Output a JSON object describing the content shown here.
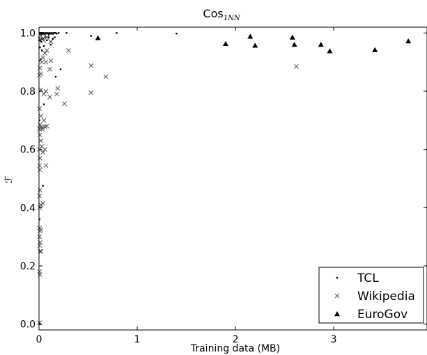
{
  "chart_data": {
    "type": "scatter",
    "title": "Cos",
    "title_subscript": "1NN",
    "xlabel": "Training data (MB)",
    "ylabel": "ℱ",
    "xlim": [
      0,
      3.95
    ],
    "ylim": [
      -0.02,
      1.02
    ],
    "x_ticks": [
      {
        "value": 0,
        "label": "0"
      },
      {
        "value": 1,
        "label": "1"
      },
      {
        "value": 2,
        "label": "2"
      },
      {
        "value": 3,
        "label": "3"
      }
    ],
    "y_ticks": [
      {
        "value": 0.0,
        "label": "0.0"
      },
      {
        "value": 0.2,
        "label": "0.2"
      },
      {
        "value": 0.4,
        "label": "0.4"
      },
      {
        "value": 0.6,
        "label": "0.6"
      },
      {
        "value": 0.8,
        "label": "0.8"
      },
      {
        "value": 1.0,
        "label": "1.0"
      }
    ],
    "grid": false,
    "legend_position": "bottom-right",
    "series": [
      {
        "name": "TCL",
        "marker": "point",
        "points": [
          [
            0.005,
            1.0
          ],
          [
            0.01,
            0.995
          ],
          [
            0.015,
            1.0
          ],
          [
            0.02,
            0.998
          ],
          [
            0.025,
            1.0
          ],
          [
            0.03,
            0.995
          ],
          [
            0.035,
            1.0
          ],
          [
            0.04,
            0.997
          ],
          [
            0.05,
            1.0
          ],
          [
            0.06,
            0.995
          ],
          [
            0.07,
            1.0
          ],
          [
            0.08,
            0.998
          ],
          [
            0.09,
            1.0
          ],
          [
            0.1,
            0.995
          ],
          [
            0.11,
            1.0
          ],
          [
            0.12,
            0.998
          ],
          [
            0.13,
            1.0
          ],
          [
            0.14,
            0.997
          ],
          [
            0.15,
            1.0
          ],
          [
            0.16,
            1.0
          ],
          [
            0.17,
            1.0
          ],
          [
            0.18,
            0.998
          ],
          [
            0.2,
            1.0
          ],
          [
            0.28,
            1.0
          ],
          [
            0.53,
            0.99
          ],
          [
            0.79,
            1.0
          ],
          [
            1.4,
            0.998
          ],
          [
            0.01,
            0.975
          ],
          [
            0.02,
            0.97
          ],
          [
            0.03,
            0.98
          ],
          [
            0.04,
            0.98
          ],
          [
            0.06,
            0.985
          ],
          [
            0.08,
            0.975
          ],
          [
            0.1,
            0.985
          ],
          [
            0.12,
            0.97
          ],
          [
            0.14,
            0.98
          ],
          [
            0.16,
            0.985
          ],
          [
            0.01,
            0.95
          ],
          [
            0.03,
            0.94
          ],
          [
            0.05,
            0.955
          ],
          [
            0.12,
            0.96
          ],
          [
            0.02,
            0.91
          ],
          [
            0.005,
            0.905
          ],
          [
            0.22,
            0.875
          ],
          [
            0.17,
            0.85
          ],
          [
            0.005,
            0.8
          ],
          [
            0.05,
            0.755
          ],
          [
            0.005,
            0.7
          ],
          [
            0.04,
            0.475
          ],
          [
            0.005,
            0.36
          ],
          [
            0.005,
            0.33
          ],
          [
            0.005,
            0.005
          ],
          [
            0.01,
            0.0
          ]
        ]
      },
      {
        "name": "Wikipedia",
        "marker": "x",
        "points": [
          [
            0.01,
            0.98
          ],
          [
            0.02,
            0.99
          ],
          [
            0.05,
            0.975
          ],
          [
            0.08,
            0.985
          ],
          [
            0.12,
            0.97
          ],
          [
            0.06,
            0.93
          ],
          [
            0.08,
            0.94
          ],
          [
            0.04,
            0.915
          ],
          [
            0.03,
            0.9
          ],
          [
            0.01,
            0.88
          ],
          [
            0.07,
            0.9
          ],
          [
            0.12,
            0.905
          ],
          [
            0.11,
            0.875
          ],
          [
            0.02,
            0.86
          ],
          [
            0.005,
            0.855
          ],
          [
            0.3,
            0.94
          ],
          [
            0.53,
            0.888
          ],
          [
            0.68,
            0.85
          ],
          [
            2.62,
            0.885
          ],
          [
            0.02,
            0.805
          ],
          [
            0.05,
            0.79
          ],
          [
            0.07,
            0.8
          ],
          [
            0.11,
            0.78
          ],
          [
            0.18,
            0.79
          ],
          [
            0.19,
            0.81
          ],
          [
            0.53,
            0.795
          ],
          [
            0.26,
            0.757
          ],
          [
            0.005,
            0.74
          ],
          [
            0.02,
            0.715
          ],
          [
            0.05,
            0.7
          ],
          [
            0.01,
            0.685
          ],
          [
            0.02,
            0.678
          ],
          [
            0.03,
            0.67
          ],
          [
            0.04,
            0.675
          ],
          [
            0.06,
            0.678
          ],
          [
            0.08,
            0.68
          ],
          [
            0.005,
            0.67
          ],
          [
            0.01,
            0.65
          ],
          [
            0.02,
            0.63
          ],
          [
            0.03,
            0.61
          ],
          [
            0.04,
            0.59
          ],
          [
            0.06,
            0.6
          ],
          [
            0.005,
            0.6
          ],
          [
            0.01,
            0.57
          ],
          [
            0.005,
            0.545
          ],
          [
            0.01,
            0.53
          ],
          [
            0.07,
            0.545
          ],
          [
            0.01,
            0.46
          ],
          [
            0.005,
            0.44
          ],
          [
            0.02,
            0.41
          ],
          [
            0.04,
            0.415
          ],
          [
            0.01,
            0.4
          ],
          [
            0.005,
            0.33
          ],
          [
            0.01,
            0.32
          ],
          [
            0.02,
            0.325
          ],
          [
            0.005,
            0.3
          ],
          [
            0.01,
            0.28
          ],
          [
            0.005,
            0.27
          ],
          [
            0.01,
            0.25
          ],
          [
            0.02,
            0.25
          ],
          [
            0.005,
            0.18
          ],
          [
            0.01,
            0.17
          ],
          [
            0.005,
            0.005
          ]
        ]
      },
      {
        "name": "EuroGov",
        "marker": "triangle",
        "points": [
          [
            0.6,
            0.983
          ],
          [
            1.9,
            0.963
          ],
          [
            2.15,
            0.988
          ],
          [
            2.2,
            0.957
          ],
          [
            2.58,
            0.985
          ],
          [
            2.6,
            0.96
          ],
          [
            2.87,
            0.96
          ],
          [
            2.96,
            0.938
          ],
          [
            3.42,
            0.942
          ],
          [
            3.76,
            0.972
          ]
        ]
      }
    ]
  }
}
